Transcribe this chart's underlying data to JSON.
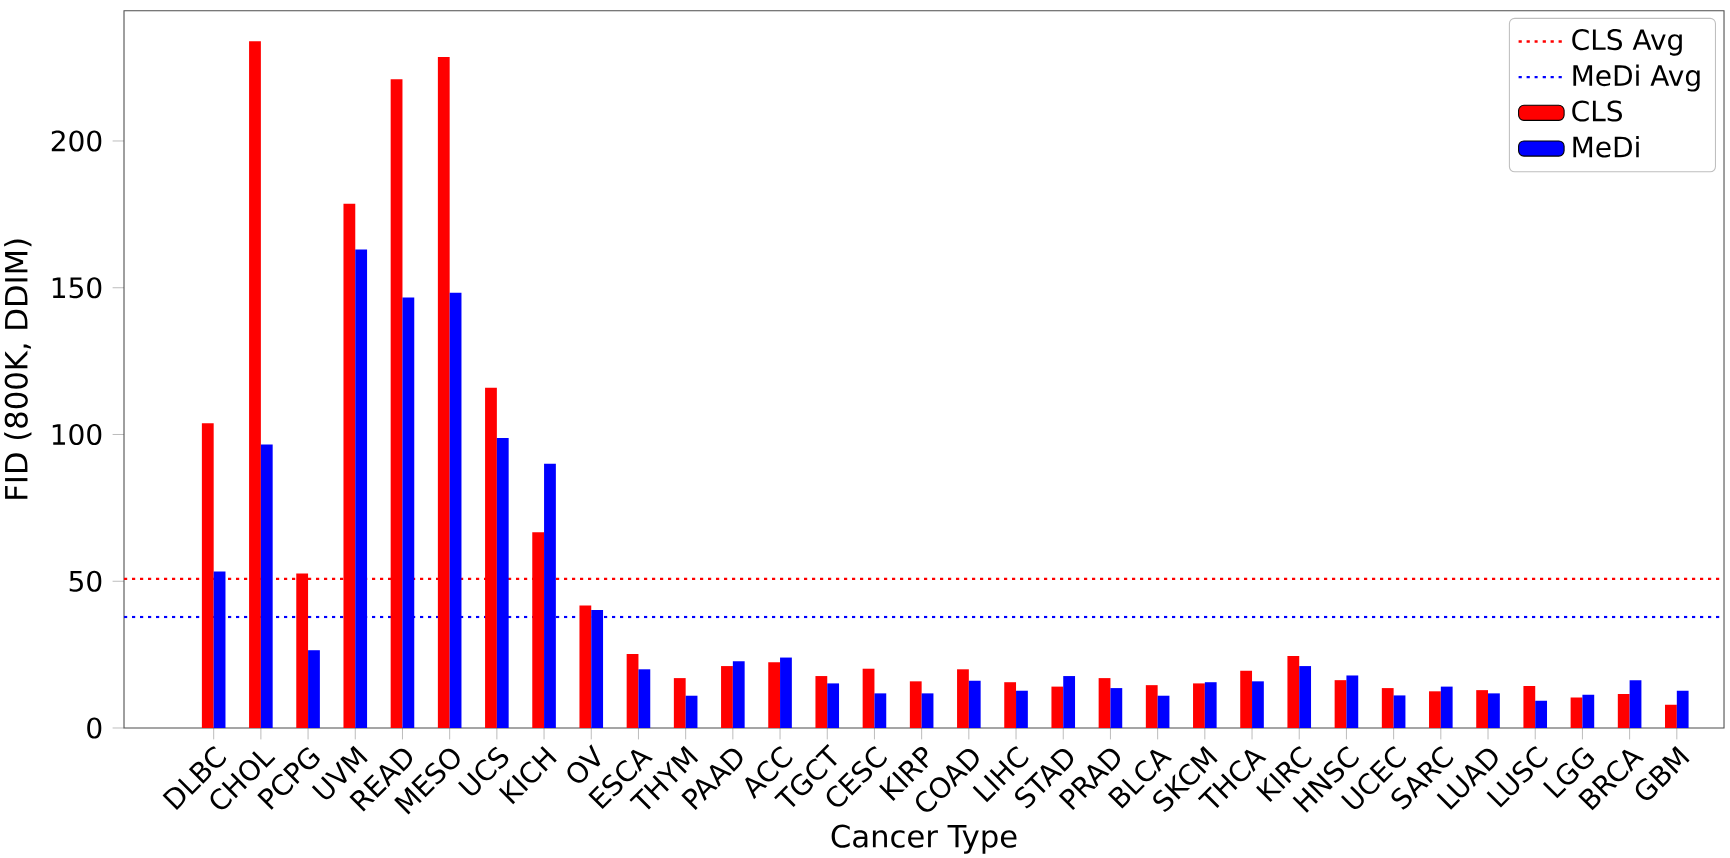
{
  "chart_data": {
    "type": "bar",
    "xlabel": "Cancer Type",
    "ylabel": "FID (800K, DDIM)",
    "categories": [
      "DLBC",
      "CHOL",
      "PCPG",
      "UVM",
      "READ",
      "MESO",
      "UCS",
      "KICH",
      "OV",
      "ESCA",
      "THYM",
      "PAAD",
      "ACC",
      "TGCT",
      "CESC",
      "KIRP",
      "COAD",
      "LIHC",
      "STAD",
      "PRAD",
      "BLCA",
      "SKCM",
      "THCA",
      "KIRC",
      "HNSC",
      "UCEC",
      "SARC",
      "LUAD",
      "LUSC",
      "LGG",
      "BRCA",
      "GBM"
    ],
    "series": [
      {
        "name": "CLS",
        "color": "#ff0000",
        "values": [
          103.8,
          234,
          52.6,
          178.6,
          221,
          228.6,
          115.9,
          66.7,
          41.7,
          25.2,
          17,
          21.1,
          22.4,
          17.7,
          20.2,
          15.9,
          20,
          15.6,
          14.1,
          17,
          14.6,
          15.2,
          19.5,
          24.5,
          16.3,
          13.6,
          12.5,
          12.9,
          14.3,
          10.4,
          11.6,
          7.9
        ]
      },
      {
        "name": "MeDi",
        "color": "#0000ff",
        "values": [
          53.3,
          96.6,
          26.5,
          163,
          146.7,
          148.3,
          98.8,
          90,
          40.2,
          20,
          11,
          22.7,
          24,
          15.2,
          11.8,
          11.8,
          16.1,
          12.7,
          17.7,
          13.6,
          11,
          15.6,
          15.9,
          21.1,
          17.9,
          11.1,
          14.1,
          11.8,
          9.3,
          11.3,
          16.3,
          12.7
        ]
      }
    ],
    "ylim": [
      0,
      244.4
    ],
    "yticks": [
      0,
      50,
      100,
      150,
      200
    ],
    "ref_lines": [
      {
        "axis": "y",
        "value": 50.8,
        "label": "CLS Avg",
        "color": "#ff0000",
        "line_style": "dotted"
      },
      {
        "axis": "y",
        "value": 37.8,
        "label": "MeDi Avg",
        "color": "#0000ff",
        "line_style": "dotted"
      }
    ],
    "legend": "top right",
    "grid": false
  }
}
